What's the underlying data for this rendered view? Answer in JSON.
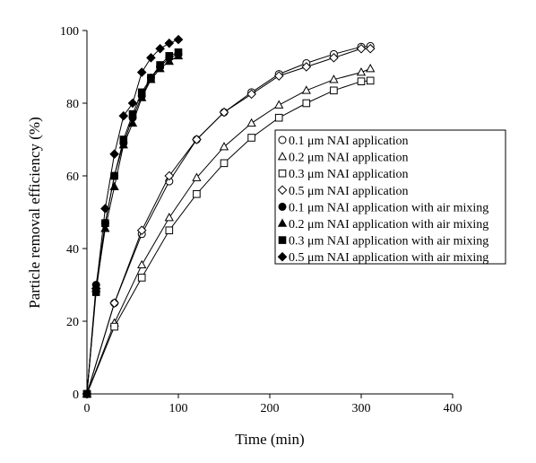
{
  "chart_data": {
    "type": "scatter",
    "title": "",
    "xlabel": "Time (min)",
    "ylabel": "Particle removal efficiency (%)",
    "xlim": [
      0,
      400
    ],
    "ylim": [
      0,
      100
    ],
    "xticks": [
      "0",
      "100",
      "200",
      "300",
      "400"
    ],
    "yticks": [
      "0",
      "20",
      "40",
      "60",
      "80",
      "100"
    ],
    "grid": false,
    "legend_position": "center-right",
    "series": [
      {
        "name": "0.1 μm NAI application",
        "marker": "circle-open",
        "x": [
          0,
          30,
          60,
          90,
          120,
          150,
          180,
          210,
          240,
          270,
          300,
          310
        ],
        "y": [
          0,
          25,
          44,
          58.5,
          70,
          77.5,
          83,
          88,
          91,
          93.5,
          95.5,
          95.7
        ]
      },
      {
        "name": "0.2 μm NAI application",
        "marker": "triangle-open",
        "x": [
          0,
          30,
          60,
          90,
          120,
          150,
          180,
          210,
          240,
          270,
          300,
          310
        ],
        "y": [
          0,
          19.5,
          35.5,
          48.5,
          59.5,
          68,
          74.5,
          79.5,
          83.5,
          86.5,
          88.5,
          89.5
        ]
      },
      {
        "name": "0.3 μm NAI application",
        "marker": "square-open",
        "x": [
          0,
          30,
          60,
          90,
          120,
          150,
          180,
          210,
          240,
          270,
          300,
          310
        ],
        "y": [
          0,
          18.5,
          32,
          45,
          55,
          63.5,
          70.5,
          76,
          80,
          83.5,
          86,
          86.2
        ]
      },
      {
        "name": "0.5 μm NAI application",
        "marker": "diamond-open",
        "x": [
          0,
          30,
          60,
          90,
          120,
          150,
          180,
          210,
          240,
          270,
          300,
          310
        ],
        "y": [
          0,
          25,
          45,
          60,
          70,
          77.5,
          82.5,
          87.5,
          90,
          92.5,
          95,
          95
        ]
      },
      {
        "name": "0.1 μm NAI application with air mixing",
        "marker": "circle-filled",
        "x": [
          0,
          10,
          20,
          30,
          40,
          50,
          60,
          70,
          80,
          90,
          100
        ],
        "y": [
          0,
          30,
          47,
          60,
          69,
          76,
          82,
          87,
          90,
          92.5,
          93.5
        ]
      },
      {
        "name": "0.2 μm NAI application with air mixing",
        "marker": "triangle-filled",
        "x": [
          0,
          10,
          20,
          30,
          40,
          50,
          60,
          70,
          80,
          90,
          100
        ],
        "y": [
          0,
          29,
          45.5,
          57,
          68.5,
          74.5,
          81.5,
          86.5,
          89.5,
          91.5,
          93
        ]
      },
      {
        "name": "0.3 μm NAI application with air mixing",
        "marker": "square-filled",
        "x": [
          0,
          10,
          20,
          30,
          40,
          50,
          60,
          70,
          80,
          90,
          100
        ],
        "y": [
          0,
          28,
          47,
          60,
          70,
          77,
          83,
          87,
          90.5,
          93,
          94
        ]
      },
      {
        "name": "0.5 μm NAI application with air mixing",
        "marker": "diamond-filled",
        "x": [
          0,
          10,
          20,
          30,
          40,
          50,
          60,
          70,
          80,
          90,
          100
        ],
        "y": [
          0,
          29,
          51,
          66,
          76.5,
          80,
          88.5,
          92.5,
          95,
          96.5,
          97.5
        ]
      }
    ]
  }
}
